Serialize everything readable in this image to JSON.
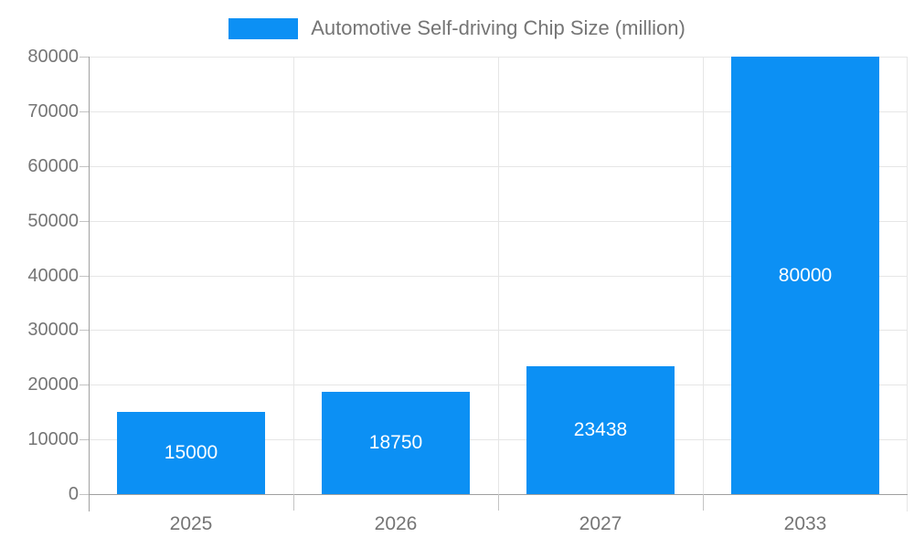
{
  "legend": {
    "label": "Automotive Self-driving Chip Size (million)"
  },
  "chart_data": {
    "type": "bar",
    "title": "Automotive Self-driving Chip Size (million)",
    "categories": [
      "2025",
      "2026",
      "2027",
      "2033"
    ],
    "values": [
      15000,
      18750,
      23438,
      80000
    ],
    "bar_labels": [
      "15000",
      "18750",
      "23438",
      "80000"
    ],
    "yticks": [
      0,
      10000,
      20000,
      30000,
      40000,
      50000,
      60000,
      70000,
      80000
    ],
    "ylim": [
      0,
      80000
    ],
    "xlabel": "",
    "ylabel": "",
    "grid": true,
    "legend_position": "top",
    "value_label_position": "inside-center"
  },
  "colors": {
    "bar": "#0c90f4",
    "axis_text": "#757575",
    "bar_label_text": "#ffffff",
    "gridline": "#e6e6e6",
    "axis_line": "#a0a0a0",
    "tick": "#c4c4c4",
    "background": "#ffffff"
  }
}
